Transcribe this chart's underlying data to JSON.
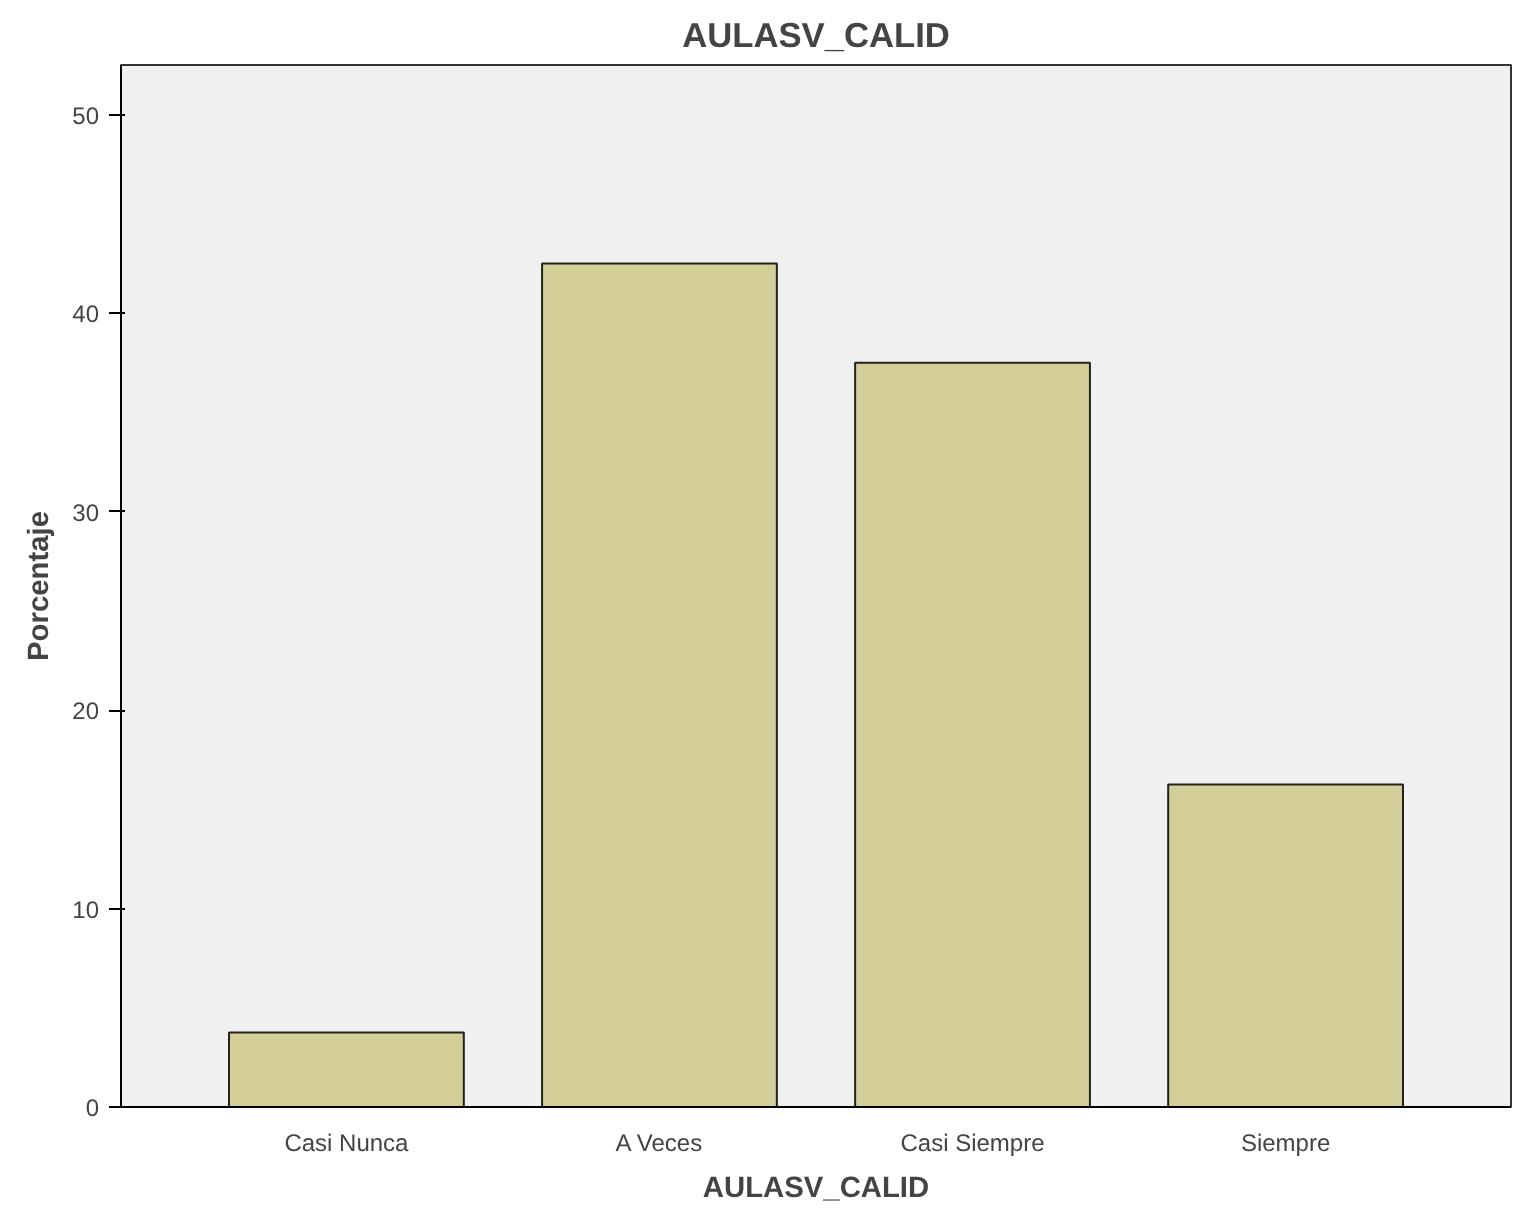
{
  "chart_data": {
    "type": "bar",
    "title": "AULASV_CALID",
    "xlabel": "AULASV_CALID",
    "ylabel": "Porcentaje",
    "categories": [
      "Casi Nunca",
      "A Veces",
      "Casi Siempre",
      "Siempre"
    ],
    "values": [
      3.75,
      42.5,
      37.5,
      16.25
    ],
    "color": "#d3ce97",
    "ylim": [
      0,
      52.5
    ],
    "yticks": [
      0,
      10,
      20,
      30,
      40,
      50
    ],
    "grid": false
  }
}
